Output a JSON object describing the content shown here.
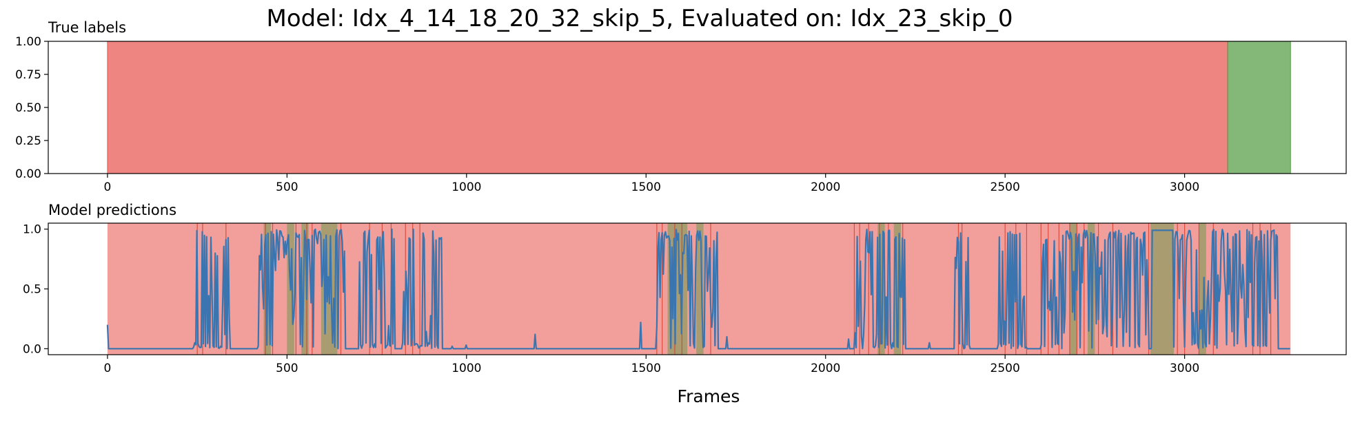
{
  "chart_data": {
    "suptitle": "Model: Idx_4_14_18_20_32_skip_5, Evaluated on: Idx_23_skip_0",
    "xlabel": "Frames",
    "colors": {
      "red": "#e8514b",
      "green": "#4f9a3f",
      "blue": "#3b75af",
      "red_line": "#d6402e"
    },
    "panels": [
      {
        "type": "area",
        "title": "True labels",
        "xlim": [
          -165,
          3450
        ],
        "ylim": [
          0,
          1
        ],
        "xticks": [
          0,
          500,
          1000,
          1500,
          2000,
          2500,
          3000
        ],
        "yticks": [
          "0.00",
          "0.25",
          "0.50",
          "0.75",
          "1.00"
        ],
        "segments": [
          {
            "start": 0,
            "end": 3120,
            "label": "red"
          },
          {
            "start": 3120,
            "end": 3295,
            "label": "green"
          }
        ]
      },
      {
        "type": "line",
        "title": "Model predictions",
        "xlim": [
          -165,
          3450
        ],
        "ylim": [
          -0.05,
          1.05
        ],
        "xticks": [
          0,
          500,
          1000,
          1500,
          2000,
          2500,
          3000
        ],
        "yticks": [
          "0.0",
          "0.5",
          "1.0"
        ],
        "background": {
          "start": 0,
          "end": 3295,
          "label": "red"
        },
        "green_spans": [
          [
            435,
            455
          ],
          [
            500,
            520
          ],
          [
            540,
            560
          ],
          [
            595,
            640
          ],
          [
            1560,
            1615
          ],
          [
            1640,
            1660
          ],
          [
            2145,
            2165
          ],
          [
            2190,
            2210
          ],
          [
            2680,
            2700
          ],
          [
            2730,
            2750
          ],
          [
            2905,
            2970
          ],
          [
            3040,
            3060
          ]
        ],
        "red_lines": [
          250,
          265,
          330,
          440,
          460,
          525,
          555,
          570,
          650,
          730,
          765,
          790,
          830,
          850,
          870,
          1530,
          1545,
          1580,
          1600,
          1680,
          2080,
          2095,
          2120,
          2150,
          2175,
          2215,
          2370,
          2380,
          2500,
          2530,
          2560,
          2600,
          2620,
          2650,
          2680,
          2700,
          2720,
          2760,
          2800,
          2900,
          2980,
          3000,
          3040,
          3080,
          3190,
          3210,
          3240
        ],
        "activity": [
          {
            "start": 240,
            "end": 340,
            "level": 0.55
          },
          {
            "start": 420,
            "end": 660,
            "level": 0.8
          },
          {
            "start": 700,
            "end": 800,
            "level": 0.55
          },
          {
            "start": 820,
            "end": 930,
            "level": 0.55
          },
          {
            "start": 1530,
            "end": 1700,
            "level": 0.85
          },
          {
            "start": 2080,
            "end": 2220,
            "level": 0.6
          },
          {
            "start": 2360,
            "end": 2400,
            "level": 0.7
          },
          {
            "start": 2480,
            "end": 2560,
            "level": 0.6
          },
          {
            "start": 2600,
            "end": 2900,
            "level": 0.85
          },
          {
            "start": 2970,
            "end": 3260,
            "level": 0.7
          }
        ],
        "spikes": [
          {
            "x": 0,
            "y": 0.2
          },
          {
            "x": 960,
            "y": 0.02
          },
          {
            "x": 1000,
            "y": 0.03
          },
          {
            "x": 1190,
            "y": 0.12
          },
          {
            "x": 1485,
            "y": 0.22
          },
          {
            "x": 1725,
            "y": 0.1
          },
          {
            "x": 2065,
            "y": 0.08
          },
          {
            "x": 2290,
            "y": 0.05
          }
        ],
        "plateaus": [
          {
            "start": 2910,
            "end": 2968,
            "y": 0.99
          }
        ],
        "x_end": 3295,
        "baseline": 0.0
      }
    ]
  }
}
